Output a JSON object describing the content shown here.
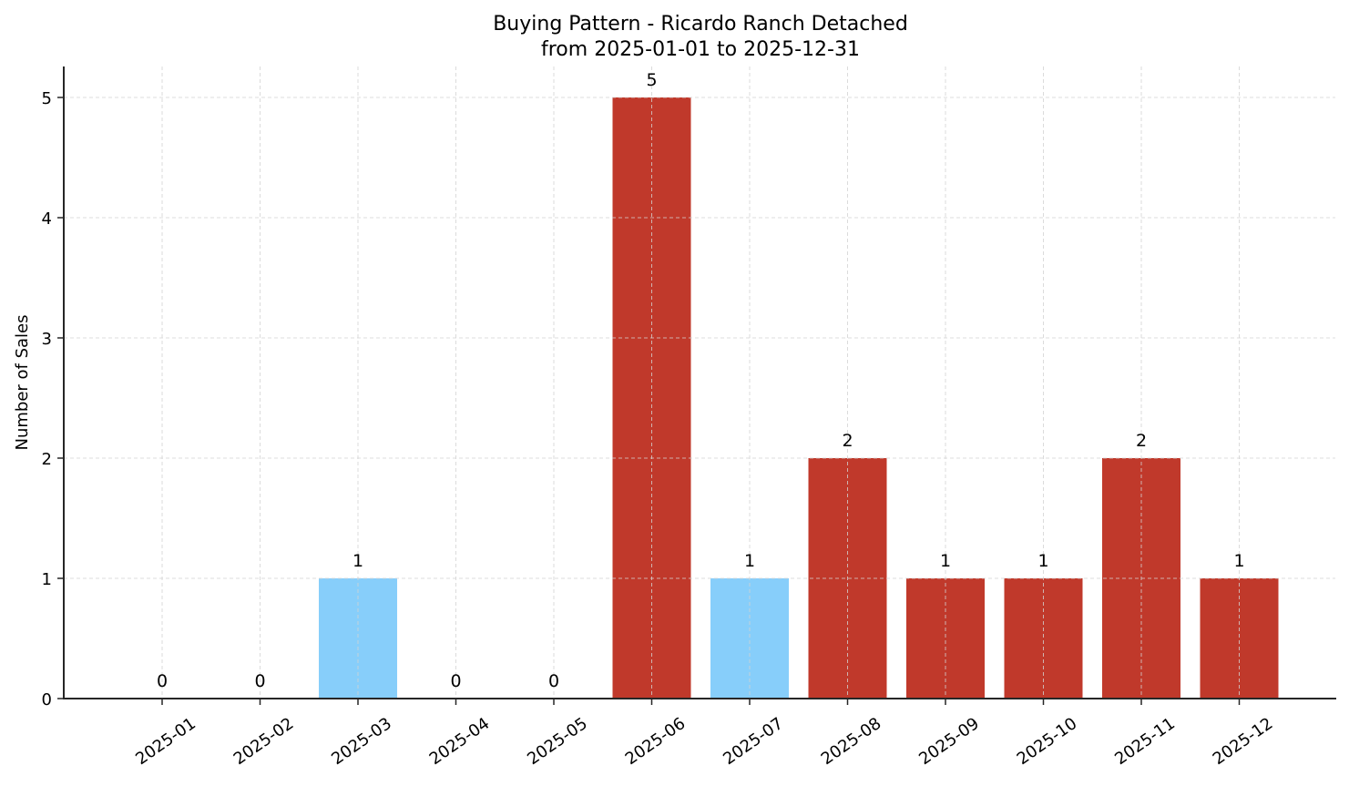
{
  "chart_data": {
    "type": "bar",
    "title": "Buying Pattern - Ricardo Ranch Detached",
    "subtitle": "from 2025-01-01 to 2025-12-31",
    "xlabel": "",
    "ylabel": "Number of Sales",
    "categories": [
      "2025-01",
      "2025-02",
      "2025-03",
      "2025-04",
      "2025-05",
      "2025-06",
      "2025-07",
      "2025-08",
      "2025-09",
      "2025-10",
      "2025-11",
      "2025-12"
    ],
    "values": [
      0,
      0,
      1,
      0,
      0,
      5,
      1,
      2,
      1,
      1,
      2,
      1
    ],
    "bar_colors": [
      "#87CEFA",
      "#87CEFA",
      "#87CEFA",
      "#87CEFA",
      "#87CEFA",
      "#C0392B",
      "#87CEFA",
      "#C0392B",
      "#C0392B",
      "#C0392B",
      "#C0392B",
      "#C0392B"
    ],
    "data_labels": [
      "0",
      "0",
      "1",
      "0",
      "0",
      "5",
      "1",
      "2",
      "1",
      "1",
      "2",
      "1"
    ],
    "yticks": [
      0,
      1,
      2,
      3,
      4,
      5
    ],
    "ylim": [
      0,
      5.25
    ],
    "grid": true,
    "grid_style": "dashed",
    "legend": null,
    "colors": {
      "highlight": "#C0392B",
      "normal": "#87CEFA",
      "grid": "#d3d3d3",
      "axis": "#262626"
    }
  }
}
